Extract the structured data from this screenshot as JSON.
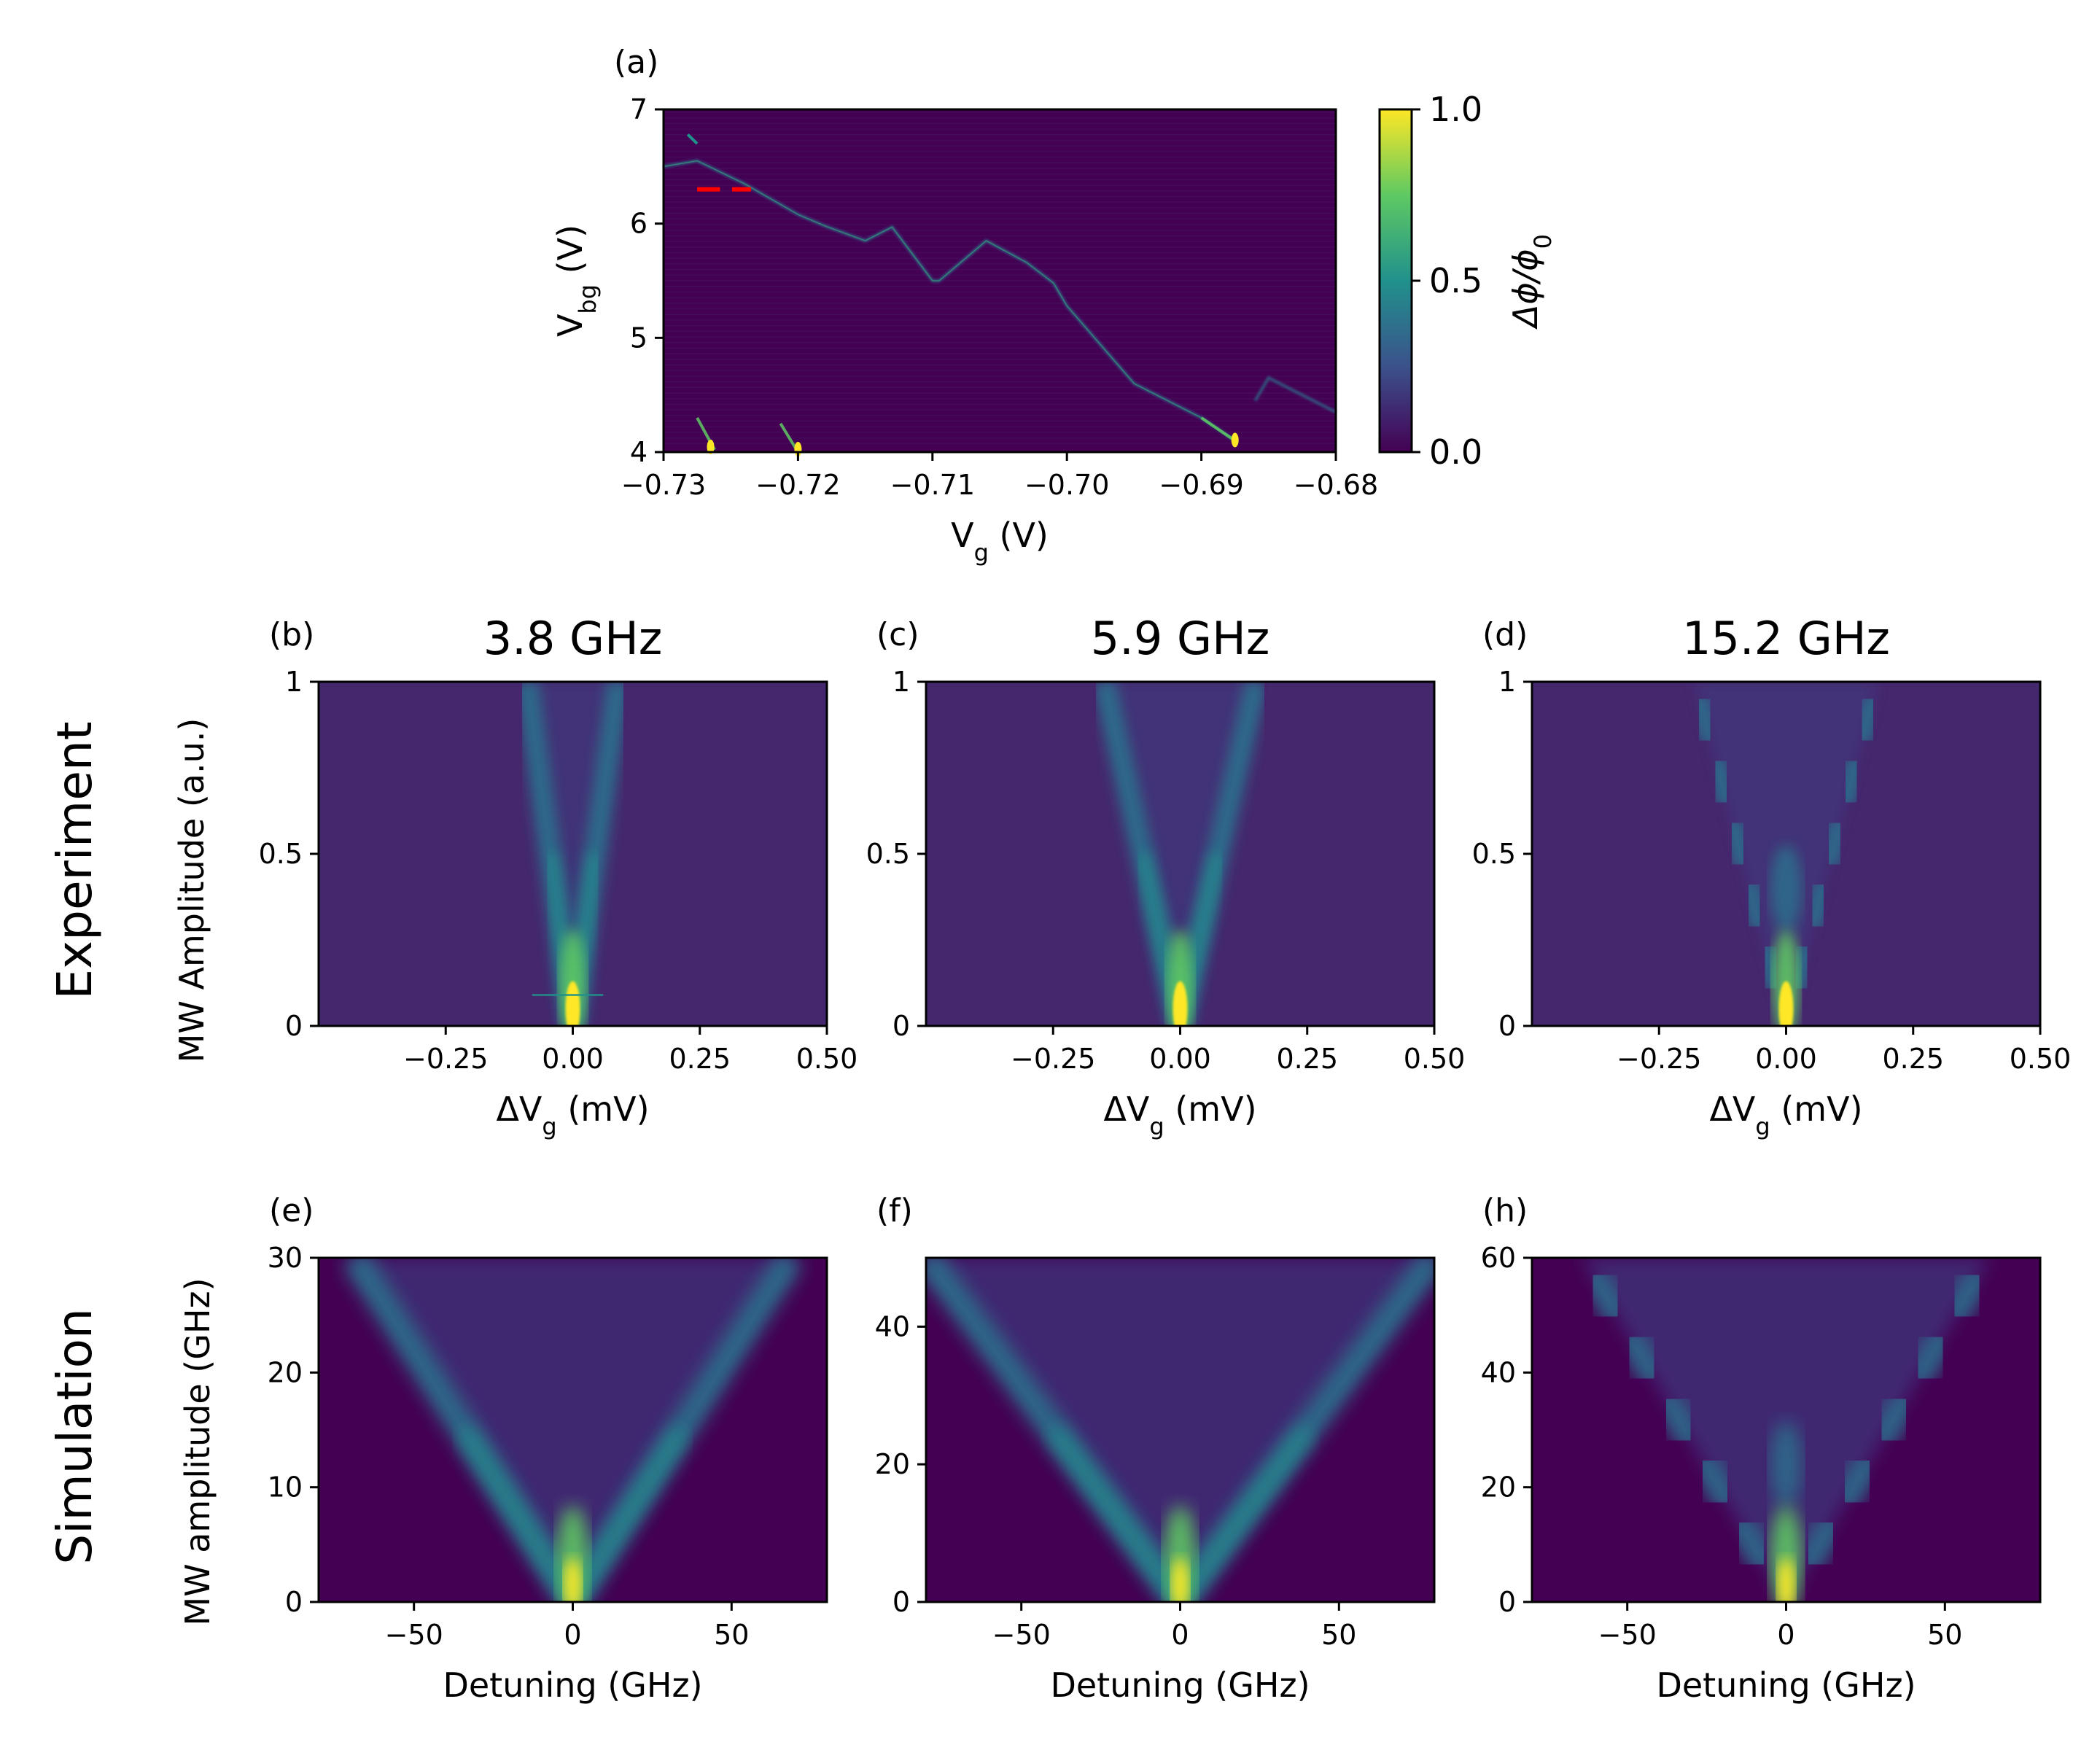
{
  "chart_data": [
    {
      "id": "a",
      "type": "heatmap",
      "panel_label": "(a)",
      "title": "",
      "xlabel_main": "V",
      "xlabel_sub": "g",
      "xlabel_unit": " (V)",
      "ylabel_main": "V",
      "ylabel_sub": "bg",
      "ylabel_unit": " (V)",
      "xlim": [
        -0.73,
        -0.68
      ],
      "ylim": [
        4,
        7
      ],
      "xticks": [
        -0.73,
        -0.72,
        -0.71,
        -0.7,
        -0.69,
        -0.68
      ],
      "xtick_labels": [
        "−0.73",
        "−0.72",
        "−0.71",
        "−0.70",
        "−0.69",
        "−0.68"
      ],
      "yticks": [
        4,
        5,
        6,
        7
      ],
      "ytick_labels": [
        "4",
        "5",
        "6",
        "7"
      ],
      "colorbar": {
        "label": "Δϕ/ϕ",
        "label_sub": "0",
        "ticks": [
          0.0,
          0.5,
          1.0
        ],
        "tick_labels": [
          "0.0",
          "0.5",
          "1.0"
        ],
        "colormap": [
          "#440154",
          "#3b528b",
          "#21918c",
          "#5ec962",
          "#fde725"
        ]
      },
      "features": {
        "main_line": [
          [
            -0.73,
            6.5
          ],
          [
            -0.7275,
            6.55
          ],
          [
            -0.724,
            6.35
          ],
          [
            -0.72,
            6.08
          ],
          [
            -0.718,
            5.98
          ],
          [
            -0.715,
            5.85
          ],
          [
            -0.713,
            5.97
          ],
          [
            -0.71,
            5.5
          ],
          [
            -0.7095,
            5.5
          ],
          [
            -0.706,
            5.85
          ],
          [
            -0.703,
            5.66
          ],
          [
            -0.701,
            5.48
          ],
          [
            -0.7,
            5.28
          ],
          [
            -0.695,
            4.6
          ],
          [
            -0.69,
            4.3
          ],
          [
            -0.6875,
            4.1
          ]
        ],
        "right_line": [
          [
            -0.686,
            4.45
          ],
          [
            -0.685,
            4.65
          ],
          [
            -0.68,
            4.35
          ]
        ],
        "bright_spots": [
          [
            -0.7265,
            4.02
          ],
          [
            -0.72,
            4.0
          ],
          [
            -0.6875,
            4.08
          ]
        ],
        "marker_segments": [
          [
            [
              -0.7275,
              6.3
            ],
            [
              -0.7258,
              6.3
            ]
          ],
          [
            [
              -0.7249,
              6.3
            ],
            [
              -0.7235,
              6.3
            ]
          ]
        ],
        "marker_color": "#ff0000"
      }
    },
    {
      "id": "b",
      "type": "heatmap",
      "row": "Experiment",
      "panel_label": "(b)",
      "title": "3.8 GHz",
      "xlabel_main": "ΔV",
      "xlabel_sub": "g",
      "xlabel_unit": " (mV)",
      "ylabel": "MW Amplitude (a.u.)",
      "xlim": [
        -0.5,
        0.5
      ],
      "ylim": [
        0,
        1
      ],
      "xticks": [
        -0.25,
        0.0,
        0.25,
        0.5
      ],
      "xtick_labels": [
        "−0.25",
        "0.00",
        "0.25",
        "0.50"
      ],
      "yticks": [
        0,
        0.5,
        1
      ],
      "ytick_labels": [
        "0",
        "0.5",
        "1"
      ],
      "slope": 0.18,
      "modulation_periods": 0
    },
    {
      "id": "c",
      "type": "heatmap",
      "row": "Experiment",
      "panel_label": "(c)",
      "title": "5.9 GHz",
      "xlabel_main": "ΔV",
      "xlabel_sub": "g",
      "xlabel_unit": " (mV)",
      "ylabel": "",
      "xlim": [
        -0.5,
        0.5
      ],
      "ylim": [
        0,
        1
      ],
      "xticks": [
        -0.25,
        0.0,
        0.25,
        0.5
      ],
      "xtick_labels": [
        "−0.25",
        "0.00",
        "0.25",
        "0.50"
      ],
      "yticks": [
        0,
        0.5,
        1
      ],
      "ytick_labels": [
        "0",
        "0.5",
        "1"
      ],
      "slope": 0.3,
      "modulation_periods": 0
    },
    {
      "id": "d",
      "type": "heatmap",
      "row": "Experiment",
      "panel_label": "(d)",
      "title": "15.2 GHz",
      "xlabel_main": "ΔV",
      "xlabel_sub": "g",
      "xlabel_unit": " (mV)",
      "ylabel": "",
      "xlim": [
        -0.5,
        0.5
      ],
      "ylim": [
        0,
        1
      ],
      "xticks": [
        -0.25,
        0.0,
        0.25,
        0.5
      ],
      "xtick_labels": [
        "−0.25",
        "0.00",
        "0.25",
        "0.50"
      ],
      "yticks": [
        0,
        0.5,
        1
      ],
      "ytick_labels": [
        "0",
        "0.5",
        "1"
      ],
      "slope": 0.36,
      "modulation_periods": 3
    },
    {
      "id": "e",
      "type": "heatmap",
      "row": "Simulation",
      "panel_label": "(e)",
      "title": "",
      "xlabel": "Detuning (GHz)",
      "ylabel": "MW amplitude (GHz)",
      "xlim": [
        -80,
        80
      ],
      "ylim": [
        0,
        30
      ],
      "xticks": [
        -50,
        0,
        50
      ],
      "xtick_labels": [
        "−50",
        "0",
        "50"
      ],
      "yticks": [
        0,
        10,
        20,
        30
      ],
      "ytick_labels": [
        "0",
        "10",
        "20",
        "30"
      ],
      "slope": 0.86,
      "modulation_periods": 0
    },
    {
      "id": "f",
      "type": "heatmap",
      "row": "Simulation",
      "panel_label": "(f)",
      "title": "",
      "xlabel": "Detuning (GHz)",
      "ylabel": "",
      "xlim": [
        -80,
        80
      ],
      "ylim": [
        0,
        50
      ],
      "xticks": [
        -50,
        0,
        50
      ],
      "xtick_labels": [
        "−50",
        "0",
        "50"
      ],
      "yticks": [
        0,
        20,
        40
      ],
      "ytick_labels": [
        "0",
        "20",
        "40"
      ],
      "slope": 1.0,
      "modulation_periods": 0
    },
    {
      "id": "h",
      "type": "heatmap",
      "row": "Simulation",
      "panel_label": "(h)",
      "title": "",
      "xlabel": "Detuning (GHz)",
      "ylabel": "",
      "xlim": [
        -80,
        80
      ],
      "ylim": [
        0,
        60
      ],
      "xticks": [
        -50,
        0,
        50
      ],
      "xtick_labels": [
        "−50",
        "0",
        "50"
      ],
      "yticks": [
        0,
        20,
        40,
        60
      ],
      "ytick_labels": [
        "0",
        "20",
        "40",
        "60"
      ],
      "slope": 0.8,
      "modulation_periods": 3
    }
  ],
  "row_labels": [
    "Experiment",
    "Simulation"
  ]
}
